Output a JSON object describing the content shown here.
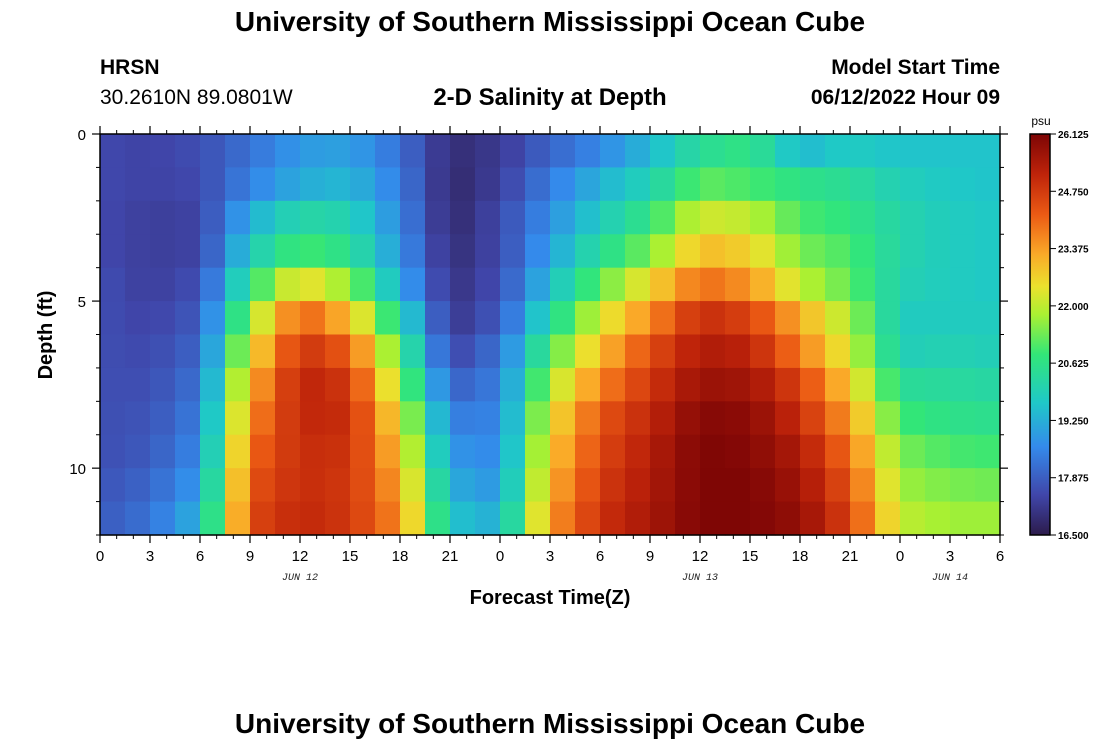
{
  "header": {
    "title": "University of Southern Mississippi Ocean Cube",
    "station": "HRSN",
    "coords": "30.2610N  89.0801W",
    "subtitle": "2-D Salinity at Depth",
    "model_start_label": "Model Start Time",
    "model_start_value": "06/12/2022 Hour 09"
  },
  "footer": {
    "title": "University of Southern Mississippi Ocean Cube"
  },
  "chart_data": {
    "type": "heatmap",
    "title": "2-D Salinity at Depth",
    "xlabel": "Forecast Time(Z)",
    "ylabel": "Depth (ft)",
    "x_hours": [
      0,
      3,
      6,
      9,
      12,
      15,
      18,
      21,
      24,
      27,
      30,
      33,
      36,
      39,
      42,
      45,
      48,
      51,
      54
    ],
    "x_tick_labels": [
      "0",
      "3",
      "6",
      "9",
      "12",
      "15",
      "18",
      "21",
      "0",
      "3",
      "6",
      "9",
      "12",
      "15",
      "18",
      "21",
      "0",
      "3",
      "6"
    ],
    "x_range": [
      0,
      54
    ],
    "day_labels": [
      {
        "label": "JUN 12",
        "hour": 12
      },
      {
        "label": "JUN 13",
        "hour": 36
      },
      {
        "label": "JUN 14",
        "hour": 51
      }
    ],
    "depth_levels_ft": [
      0.5,
      1.5,
      2.5,
      3.5,
      4.5,
      5.5,
      6.5,
      7.5,
      8.5,
      9.5,
      10.5,
      11.5
    ],
    "y_range": [
      0,
      12
    ],
    "y_ticks": [
      0,
      5,
      10
    ],
    "y_tick_labels": [
      "0",
      "5",
      "10"
    ],
    "colorbar": {
      "unit": "psu",
      "min": 16.5,
      "max": 26.125,
      "ticks": [
        26.125,
        24.75,
        23.375,
        22.0,
        20.625,
        19.25,
        17.875,
        16.5
      ],
      "tick_labels": [
        "26.125",
        "24.750",
        "23.375",
        "22.000",
        "20.625",
        "19.250",
        "17.875",
        "16.500"
      ]
    },
    "salinity_anchor_hours": [
      0,
      3,
      6,
      9,
      12,
      15,
      18,
      21,
      24,
      27,
      30,
      33,
      36,
      39,
      42,
      45,
      48,
      51,
      54
    ],
    "salinity_psu": [
      [
        17.5,
        17.4,
        17.6,
        18.2,
        18.9,
        19.0,
        18.2,
        16.9,
        17.2,
        18.0,
        18.6,
        19.4,
        20.4,
        20.7,
        19.4,
        19.8,
        19.6,
        19.6,
        19.6
      ],
      [
        17.5,
        17.4,
        17.5,
        18.5,
        19.2,
        19.4,
        18.4,
        16.8,
        17.3,
        18.4,
        19.3,
        20.0,
        21.2,
        21.0,
        20.6,
        20.4,
        19.9,
        19.7,
        19.6
      ],
      [
        17.5,
        17.3,
        17.4,
        19.2,
        20.2,
        20.0,
        18.6,
        16.8,
        17.5,
        18.7,
        19.8,
        20.7,
        22.2,
        22.0,
        21.0,
        20.7,
        20.1,
        19.8,
        19.7
      ],
      [
        17.5,
        17.3,
        17.4,
        19.8,
        21.0,
        20.5,
        18.8,
        16.9,
        17.5,
        19.0,
        20.4,
        21.4,
        23.0,
        22.7,
        21.4,
        21.0,
        20.1,
        19.8,
        19.7
      ],
      [
        17.6,
        17.3,
        17.6,
        20.6,
        22.6,
        21.6,
        19.2,
        17.0,
        17.6,
        19.5,
        21.2,
        22.6,
        24.0,
        23.5,
        22.0,
        21.2,
        20.0,
        19.8,
        19.7
      ],
      [
        17.6,
        17.4,
        17.8,
        21.6,
        24.2,
        23.0,
        20.2,
        17.1,
        17.8,
        20.2,
        22.2,
        23.6,
        25.0,
        24.6,
        23.2,
        21.8,
        19.8,
        19.8,
        19.8
      ],
      [
        17.6,
        17.5,
        18.0,
        22.4,
        24.9,
        24.2,
        21.0,
        17.4,
        18.2,
        21.0,
        23.0,
        24.4,
        25.4,
        25.2,
        23.8,
        22.2,
        19.9,
        20.0,
        19.9
      ],
      [
        17.6,
        17.6,
        18.2,
        23.1,
        25.2,
        24.8,
        21.7,
        17.9,
        18.4,
        21.8,
        23.7,
        24.8,
        25.7,
        25.6,
        24.6,
        22.8,
        20.4,
        20.3,
        20.2
      ],
      [
        17.6,
        17.7,
        18.4,
        23.6,
        25.1,
        25.0,
        22.4,
        18.4,
        18.5,
        22.4,
        24.3,
        25.1,
        26.0,
        25.9,
        25.0,
        23.4,
        20.9,
        20.6,
        20.5
      ],
      [
        17.6,
        17.8,
        18.6,
        24.0,
        25.0,
        24.9,
        22.9,
        18.8,
        18.6,
        22.8,
        24.5,
        25.3,
        26.1,
        26.0,
        25.4,
        23.9,
        21.4,
        21.0,
        20.9
      ],
      [
        17.7,
        18.0,
        18.9,
        24.3,
        25.0,
        24.8,
        23.3,
        19.2,
        18.8,
        23.1,
        24.7,
        25.4,
        26.1,
        26.1,
        25.6,
        24.3,
        21.7,
        21.4,
        21.3
      ],
      [
        17.8,
        18.2,
        19.3,
        24.5,
        25.1,
        24.8,
        23.6,
        19.6,
        19.2,
        23.4,
        24.9,
        25.5,
        26.1,
        26.1,
        25.8,
        24.6,
        22.0,
        21.7,
        21.7
      ]
    ]
  }
}
